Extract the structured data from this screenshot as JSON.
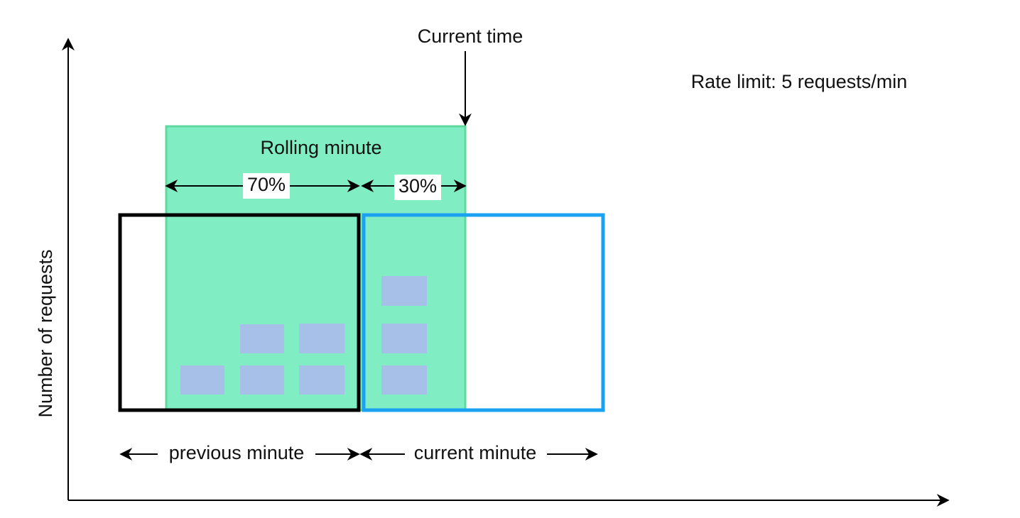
{
  "labels": {
    "current_time": "Current time",
    "rate_limit": "Rate limit: 5 requests/min",
    "rolling_minute": "Rolling minute",
    "previous_share": "70%",
    "current_share": "30%",
    "y_axis": "Number of requests",
    "previous_minute": "previous minute",
    "current_minute": "current minute"
  }
}
